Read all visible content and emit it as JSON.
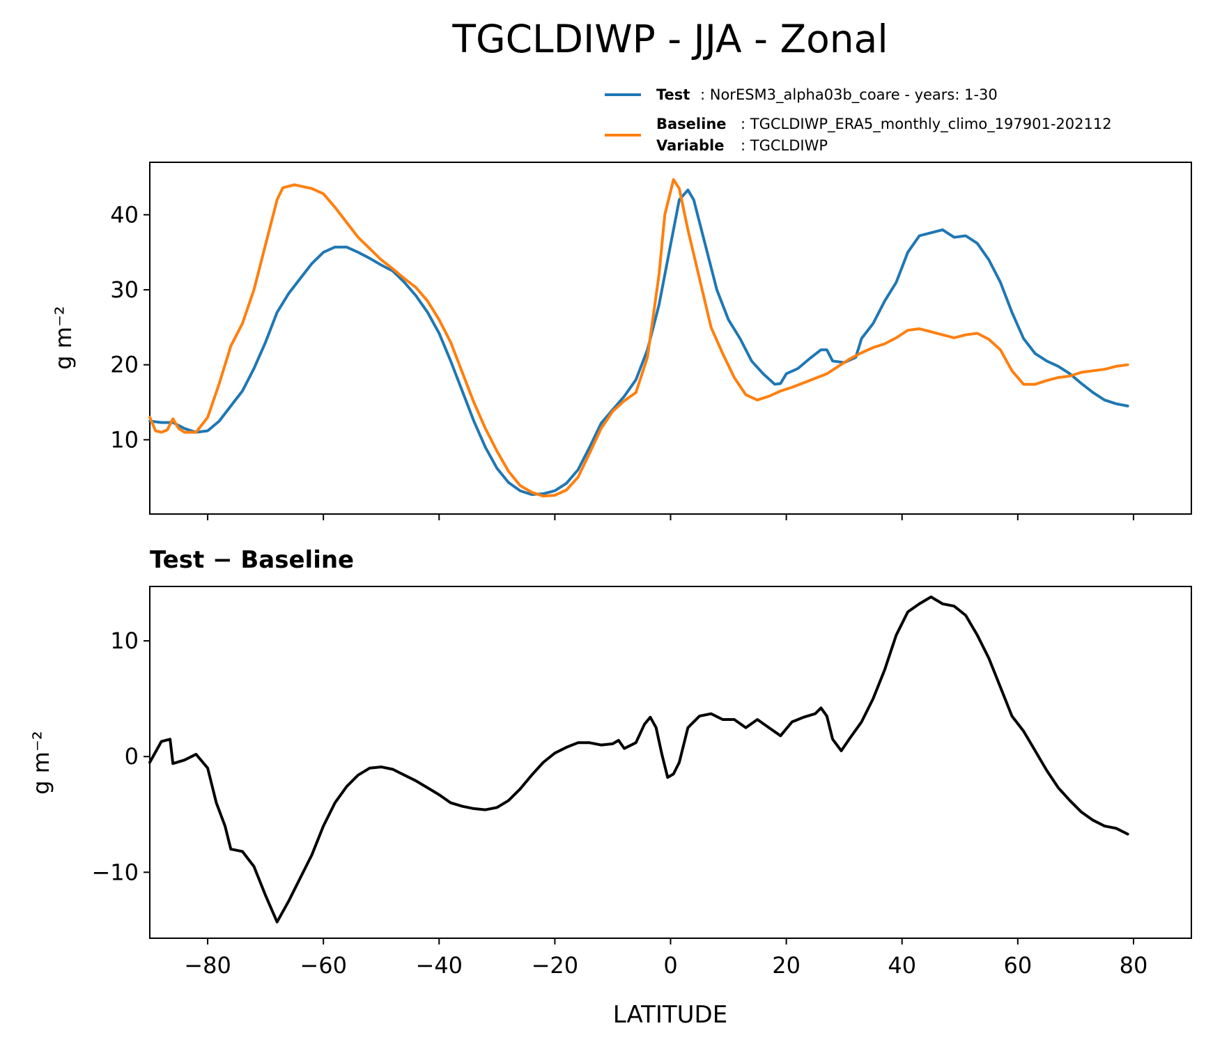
{
  "figure_title": "TGCLDIWP - JJA - Zonal",
  "legend": {
    "test_key": "Test",
    "test_value": ": NorESM3_alpha03b_coare - years: 1-30",
    "baseline_key": "Baseline",
    "baseline_value": ": TGCLDIWP_ERA5_monthly_climo_197901-202112",
    "variable_key": "Variable",
    "variable_value": ": TGCLDIWP"
  },
  "colors": {
    "test": "#1f77b4",
    "baseline": "#ff7f0e",
    "diff": "#000000"
  },
  "chart_data": [
    {
      "type": "line",
      "title": "",
      "xlabel": "",
      "ylabel": "g m⁻²",
      "xlim": [
        -90,
        90
      ],
      "ylim": [
        0.1,
        47
      ],
      "yticks": [
        10,
        20,
        30,
        40
      ],
      "xticks": [
        -80,
        -60,
        -40,
        -20,
        0,
        20,
        40,
        60,
        80
      ],
      "series": [
        {
          "name": "Test",
          "color": "#1f77b4",
          "points": [
            [
              -90,
              12.5
            ],
            [
              -88,
              12.3
            ],
            [
              -86,
              12.3
            ],
            [
              -84,
              11.5
            ],
            [
              -82,
              11
            ],
            [
              -80,
              11.2
            ],
            [
              -78,
              12.5
            ],
            [
              -76,
              14.5
            ],
            [
              -74,
              16.5
            ],
            [
              -72,
              19.5
            ],
            [
              -70,
              23
            ],
            [
              -68,
              27
            ],
            [
              -66,
              29.5
            ],
            [
              -64,
              31.5
            ],
            [
              -62,
              33.5
            ],
            [
              -60,
              35
            ],
            [
              -58,
              35.7
            ],
            [
              -56,
              35.7
            ],
            [
              -54,
              35
            ],
            [
              -52,
              34.2
            ],
            [
              -50,
              33.3
            ],
            [
              -48,
              32.5
            ],
            [
              -46,
              31
            ],
            [
              -44,
              29.2
            ],
            [
              -42,
              27
            ],
            [
              -40,
              24.2
            ],
            [
              -38,
              20.5
            ],
            [
              -36,
              16.5
            ],
            [
              -34,
              12.5
            ],
            [
              -32,
              9
            ],
            [
              -30,
              6.2
            ],
            [
              -28,
              4.3
            ],
            [
              -26,
              3.2
            ],
            [
              -24,
              2.7
            ],
            [
              -22,
              2.8
            ],
            [
              -20,
              3.2
            ],
            [
              -18,
              4.2
            ],
            [
              -16,
              6
            ],
            [
              -14,
              9
            ],
            [
              -12,
              12.2
            ],
            [
              -10,
              14
            ],
            [
              -8,
              15.8
            ],
            [
              -6,
              18
            ],
            [
              -4,
              22
            ],
            [
              -2,
              28
            ],
            [
              0,
              36
            ],
            [
              1.5,
              42
            ],
            [
              3,
              43.3
            ],
            [
              4,
              42
            ],
            [
              6,
              36
            ],
            [
              8,
              30
            ],
            [
              10,
              26
            ],
            [
              12,
              23.5
            ],
            [
              14,
              20.5
            ],
            [
              16,
              18.8
            ],
            [
              18,
              17.4
            ],
            [
              19,
              17.5
            ],
            [
              20,
              18.8
            ],
            [
              22,
              19.5
            ],
            [
              24,
              20.8
            ],
            [
              26,
              22
            ],
            [
              27,
              22
            ],
            [
              28,
              20.5
            ],
            [
              30,
              20.3
            ],
            [
              32,
              21
            ],
            [
              33,
              23.5
            ],
            [
              35,
              25.5
            ],
            [
              37,
              28.5
            ],
            [
              39,
              31
            ],
            [
              41,
              35
            ],
            [
              43,
              37.2
            ],
            [
              45,
              37.6
            ],
            [
              47,
              38
            ],
            [
              49,
              37
            ],
            [
              51,
              37.2
            ],
            [
              53,
              36.2
            ],
            [
              55,
              34
            ],
            [
              57,
              31
            ],
            [
              59,
              27
            ],
            [
              61,
              23.5
            ],
            [
              63,
              21.5
            ],
            [
              65,
              20.5
            ],
            [
              67,
              19.8
            ],
            [
              69,
              18.8
            ],
            [
              71,
              17.5
            ],
            [
              73,
              16.3
            ],
            [
              75,
              15.3
            ],
            [
              77,
              14.8
            ],
            [
              79,
              14.5
            ]
          ]
        },
        {
          "name": "Baseline",
          "color": "#ff7f0e",
          "points": [
            [
              -90,
              13
            ],
            [
              -89,
              11.2
            ],
            [
              -88,
              11
            ],
            [
              -87,
              11.3
            ],
            [
              -86,
              12.8
            ],
            [
              -85,
              11.5
            ],
            [
              -84,
              11
            ],
            [
              -82,
              11
            ],
            [
              -80,
              13
            ],
            [
              -78,
              17.5
            ],
            [
              -76,
              22.5
            ],
            [
              -74,
              25.5
            ],
            [
              -72,
              30
            ],
            [
              -70,
              36
            ],
            [
              -68,
              42
            ],
            [
              -67,
              43.6
            ],
            [
              -65,
              44
            ],
            [
              -62,
              43.5
            ],
            [
              -60,
              42.8
            ],
            [
              -58,
              41
            ],
            [
              -56,
              39
            ],
            [
              -54,
              37
            ],
            [
              -52,
              35.5
            ],
            [
              -50,
              34
            ],
            [
              -48,
              32.8
            ],
            [
              -46,
              31.5
            ],
            [
              -44,
              30.3
            ],
            [
              -42,
              28.5
            ],
            [
              -40,
              26
            ],
            [
              -38,
              23
            ],
            [
              -36,
              19
            ],
            [
              -34,
              15
            ],
            [
              -32,
              11.5
            ],
            [
              -30,
              8.5
            ],
            [
              -28,
              5.8
            ],
            [
              -26,
              3.9
            ],
            [
              -24,
              3
            ],
            [
              -22,
              2.5
            ],
            [
              -20,
              2.6
            ],
            [
              -18,
              3.3
            ],
            [
              -16,
              5
            ],
            [
              -14,
              8.2
            ],
            [
              -12,
              11.5
            ],
            [
              -10,
              13.8
            ],
            [
              -8,
              15.2
            ],
            [
              -6,
              16.3
            ],
            [
              -4,
              21
            ],
            [
              -2,
              32
            ],
            [
              -1,
              40
            ],
            [
              0.5,
              44.7
            ],
            [
              1.5,
              43.5
            ],
            [
              3,
              38
            ],
            [
              5,
              31.5
            ],
            [
              7,
              25
            ],
            [
              9,
              21.5
            ],
            [
              11,
              18.3
            ],
            [
              13,
              16
            ],
            [
              15,
              15.3
            ],
            [
              17,
              15.8
            ],
            [
              19,
              16.5
            ],
            [
              21,
              17
            ],
            [
              23,
              17.6
            ],
            [
              25,
              18.2
            ],
            [
              27,
              18.8
            ],
            [
              29,
              19.8
            ],
            [
              31,
              20.8
            ],
            [
              33,
              21.6
            ],
            [
              35,
              22.3
            ],
            [
              37,
              22.8
            ],
            [
              39,
              23.6
            ],
            [
              41,
              24.6
            ],
            [
              43,
              24.8
            ],
            [
              45,
              24.4
            ],
            [
              47,
              24
            ],
            [
              49,
              23.6
            ],
            [
              51,
              24
            ],
            [
              53,
              24.2
            ],
            [
              55,
              23.4
            ],
            [
              57,
              22
            ],
            [
              59,
              19.2
            ],
            [
              61,
              17.4
            ],
            [
              63,
              17.4
            ],
            [
              65,
              17.9
            ],
            [
              67,
              18.3
            ],
            [
              69,
              18.5
            ],
            [
              71,
              19
            ],
            [
              73,
              19.2
            ],
            [
              75,
              19.4
            ],
            [
              77,
              19.8
            ],
            [
              79,
              20
            ]
          ]
        }
      ]
    },
    {
      "type": "line",
      "title": "Test − Baseline",
      "xlabel": "LATITUDE",
      "ylabel": "g m⁻²",
      "xlim": [
        -90,
        90
      ],
      "ylim": [
        -15.7,
        14.7
      ],
      "yticks": [
        -10,
        0,
        10
      ],
      "xticks": [
        -80,
        -60,
        -40,
        -20,
        0,
        20,
        40,
        60,
        80
      ],
      "series": [
        {
          "name": "Test − Baseline",
          "color": "#000000",
          "points": [
            [
              -90,
              -0.5
            ],
            [
              -88,
              1.3
            ],
            [
              -86.5,
              1.5
            ],
            [
              -86,
              -0.6
            ],
            [
              -84,
              -0.3
            ],
            [
              -82,
              0.2
            ],
            [
              -80,
              -1
            ],
            [
              -78.5,
              -4
            ],
            [
              -77,
              -6
            ],
            [
              -76,
              -8
            ],
            [
              -74,
              -8.2
            ],
            [
              -72,
              -9.5
            ],
            [
              -70,
              -12
            ],
            [
              -68,
              -14.3
            ],
            [
              -66,
              -12.5
            ],
            [
              -64,
              -10.5
            ],
            [
              -62,
              -8.5
            ],
            [
              -60,
              -6
            ],
            [
              -58,
              -4
            ],
            [
              -56,
              -2.6
            ],
            [
              -54,
              -1.6
            ],
            [
              -52,
              -1
            ],
            [
              -50,
              -0.9
            ],
            [
              -48,
              -1.1
            ],
            [
              -46,
              -1.6
            ],
            [
              -44,
              -2.1
            ],
            [
              -42,
              -2.7
            ],
            [
              -40,
              -3.3
            ],
            [
              -38,
              -4
            ],
            [
              -36,
              -4.3
            ],
            [
              -34,
              -4.5
            ],
            [
              -32,
              -4.6
            ],
            [
              -30,
              -4.4
            ],
            [
              -28,
              -3.8
            ],
            [
              -26,
              -2.8
            ],
            [
              -24,
              -1.6
            ],
            [
              -22,
              -0.5
            ],
            [
              -20,
              0.3
            ],
            [
              -18,
              0.8
            ],
            [
              -16,
              1.2
            ],
            [
              -14,
              1.2
            ],
            [
              -12,
              1
            ],
            [
              -10,
              1.1
            ],
            [
              -9,
              1.4
            ],
            [
              -8,
              0.7
            ],
            [
              -6,
              1.2
            ],
            [
              -4.5,
              2.8
            ],
            [
              -3.5,
              3.4
            ],
            [
              -2.5,
              2.5
            ],
            [
              -1.5,
              0.2
            ],
            [
              -0.5,
              -1.8
            ],
            [
              0.5,
              -1.5
            ],
            [
              1.5,
              -0.5
            ],
            [
              3,
              2.5
            ],
            [
              5,
              3.5
            ],
            [
              7,
              3.7
            ],
            [
              9,
              3.2
            ],
            [
              11,
              3.2
            ],
            [
              13,
              2.5
            ],
            [
              15,
              3.2
            ],
            [
              17,
              2.5
            ],
            [
              19,
              1.8
            ],
            [
              21,
              3
            ],
            [
              23,
              3.4
            ],
            [
              25,
              3.7
            ],
            [
              26,
              4.2
            ],
            [
              27,
              3.5
            ],
            [
              28,
              1.5
            ],
            [
              29.5,
              0.5
            ],
            [
              31,
              1.6
            ],
            [
              33,
              3
            ],
            [
              35,
              5
            ],
            [
              37,
              7.5
            ],
            [
              39,
              10.5
            ],
            [
              41,
              12.5
            ],
            [
              43,
              13.2
            ],
            [
              45,
              13.8
            ],
            [
              47,
              13.2
            ],
            [
              49,
              13
            ],
            [
              51,
              12.2
            ],
            [
              53,
              10.5
            ],
            [
              55,
              8.5
            ],
            [
              57,
              6
            ],
            [
              59,
              3.5
            ],
            [
              61,
              2.2
            ],
            [
              63,
              0.5
            ],
            [
              65,
              -1.2
            ],
            [
              67,
              -2.7
            ],
            [
              69,
              -3.8
            ],
            [
              71,
              -4.8
            ],
            [
              73,
              -5.5
            ],
            [
              75,
              -6
            ],
            [
              77,
              -6.2
            ],
            [
              79,
              -6.7
            ]
          ]
        }
      ]
    }
  ]
}
